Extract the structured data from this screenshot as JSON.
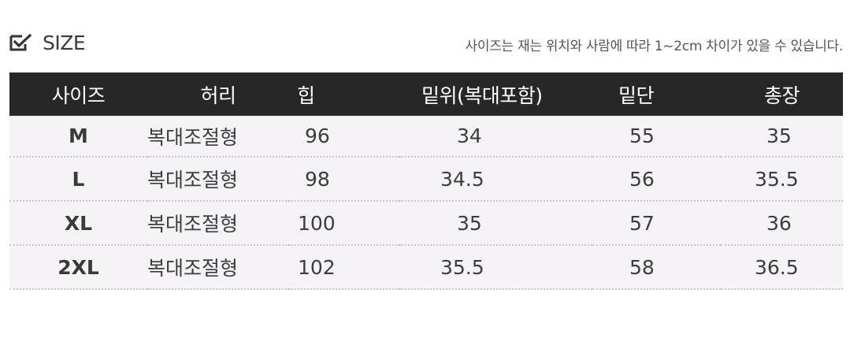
{
  "header": {
    "title": "SIZE",
    "title_icon": "checkbox-pencil-icon",
    "note": "사이즈는 재는 위치와 사람에 따라 1~2cm 차이가 있을 수 있습니다."
  },
  "table": {
    "columns": [
      "사이즈",
      "허리",
      "힙",
      "밑위(복대포함)",
      "밑단",
      "총장"
    ],
    "rows": [
      {
        "size": "M",
        "waist": "복대조절형",
        "hip": "96",
        "rise": "34",
        "hem": "55",
        "length": "35"
      },
      {
        "size": "L",
        "waist": "복대조절형",
        "hip": "98",
        "rise": "34.5",
        "hem": "56",
        "length": "35.5"
      },
      {
        "size": "XL",
        "waist": "복대조절형",
        "hip": "100",
        "rise": "35",
        "hem": "57",
        "length": "36"
      },
      {
        "size": "2XL",
        "waist": "복대조절형",
        "hip": "102",
        "rise": "35.5",
        "hem": "58",
        "length": "36.5"
      }
    ]
  },
  "colors": {
    "header_bg": "#272727",
    "row_bg": "#f5f3f6",
    "text": "#3d3d3d"
  }
}
